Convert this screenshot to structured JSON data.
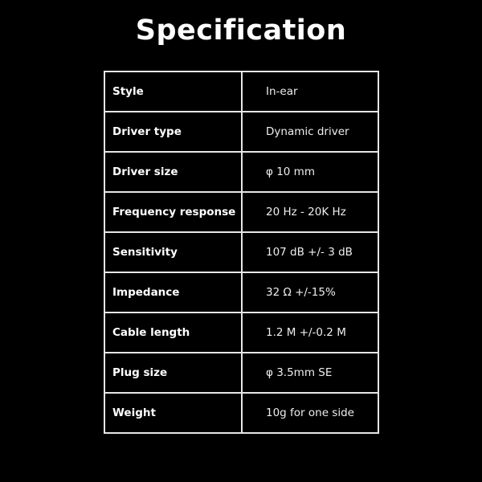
{
  "title": "Specification",
  "specs": [
    {
      "label": "Style",
      "value": "In-ear"
    },
    {
      "label": "Driver type",
      "value": "Dynamic driver"
    },
    {
      "label": "Driver size",
      "value": "φ 10 mm"
    },
    {
      "label": "Frequency response",
      "value": "20 Hz - 20K Hz"
    },
    {
      "label": "Sensitivity",
      "value": "107 dB +/- 3 dB"
    },
    {
      "label": "Impedance",
      "value": "32 Ω +/-15%"
    },
    {
      "label": "Cable length",
      "value": "1.2 M +/-0.2 M"
    },
    {
      "label": "Plug size",
      "value": "φ 3.5mm SE"
    },
    {
      "label": "Weight",
      "value": "10g for one side"
    }
  ]
}
